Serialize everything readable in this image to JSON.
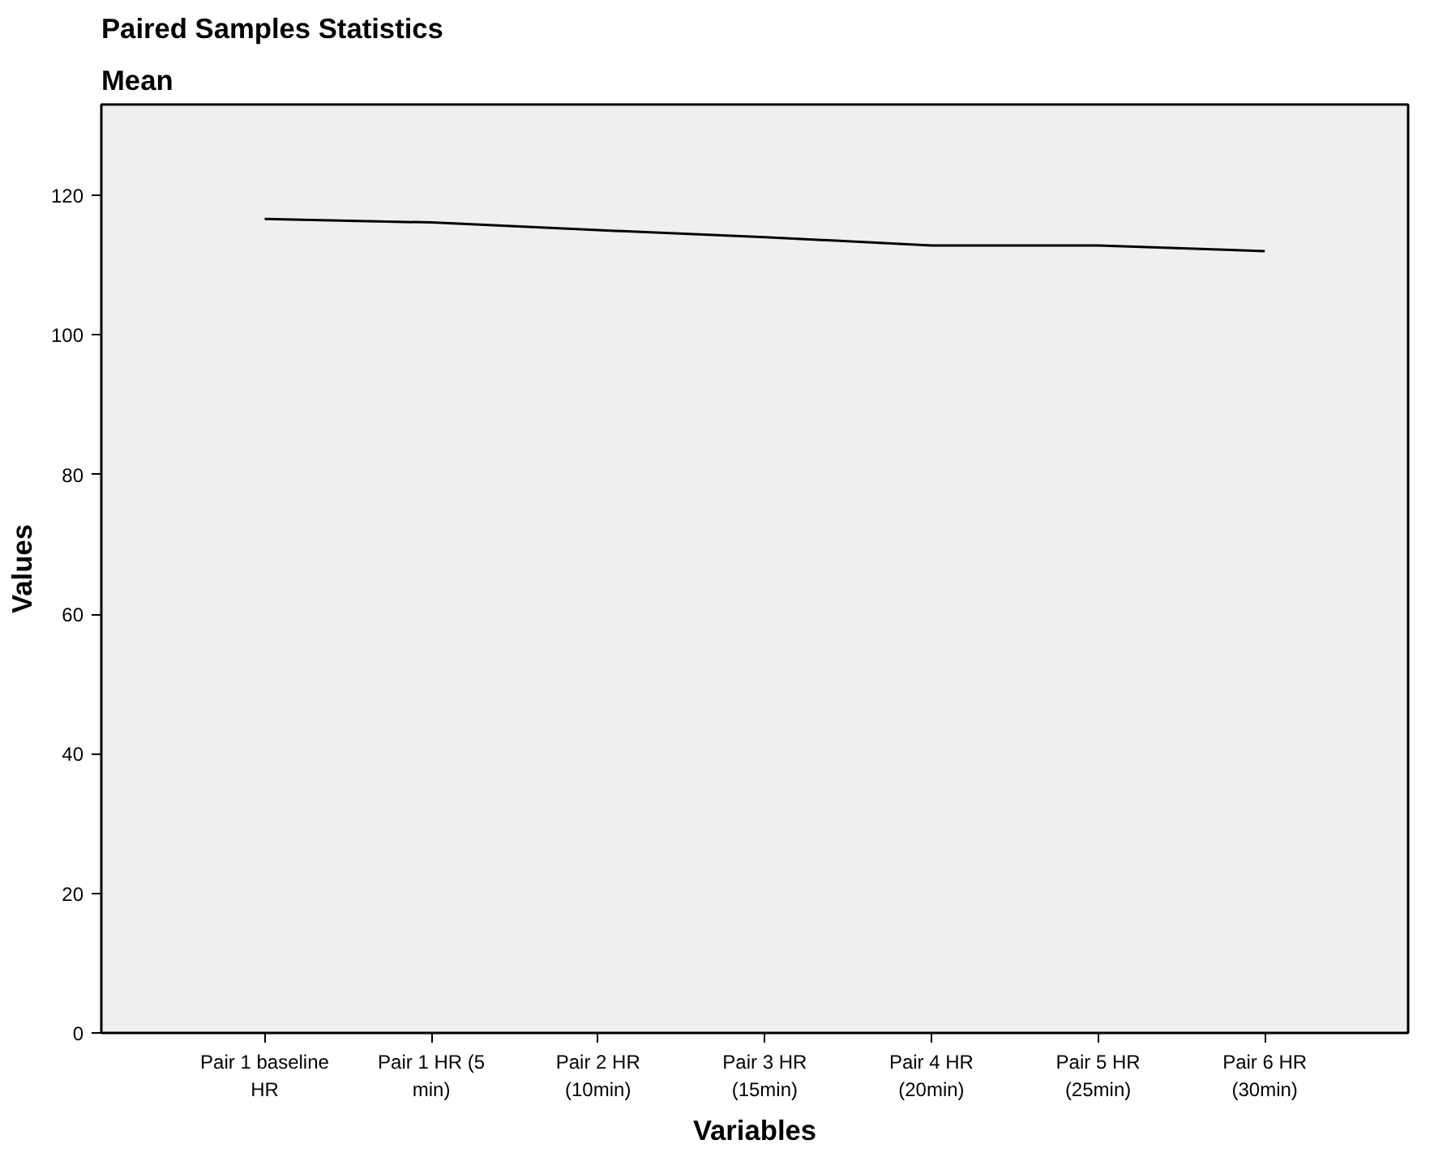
{
  "chart_data": {
    "type": "line",
    "title": "Paired Samples Statistics",
    "subtitle": "Mean",
    "xlabel": "Variables",
    "ylabel": "Values",
    "categories": [
      "Pair 1 baseline HR",
      "Pair 1 HR (5 min)",
      "Pair 2 HR (10min)",
      "Pair 3 HR (15min)",
      "Pair 4 HR (20min)",
      "Pair 5 HR (25min)",
      "Pair 6 HR (30min)"
    ],
    "series": [
      {
        "color": "#000000",
        "values": [
          116.6,
          116.1,
          115.0,
          114.0,
          112.8,
          112.8,
          112.0
        ]
      }
    ],
    "ylim": [
      0,
      133
    ],
    "yticks": [
      0,
      20,
      40,
      60,
      80,
      100,
      120
    ],
    "grid": false,
    "marker": "none",
    "line_style": "solid"
  }
}
